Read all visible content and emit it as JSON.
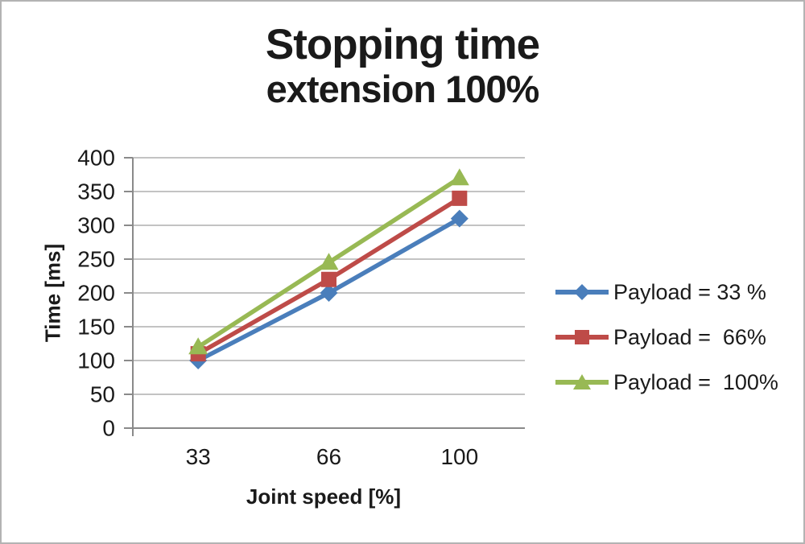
{
  "chart_data": {
    "type": "line",
    "title": "Stopping time",
    "subtitle": "extension 100%",
    "xlabel": "Joint speed [%]",
    "ylabel": "Time [ms]",
    "categories": [
      "33",
      "66",
      "100"
    ],
    "series": [
      {
        "name": "Payload = 33 %",
        "values": [
          100,
          200,
          310
        ],
        "color": "#4A7EBB",
        "marker": "diamond"
      },
      {
        "name": "Payload =  66%",
        "values": [
          110,
          220,
          340
        ],
        "color": "#BE4B48",
        "marker": "square"
      },
      {
        "name": "Payload =  100%",
        "values": [
          120,
          245,
          370
        ],
        "color": "#98B954",
        "marker": "triangle"
      }
    ],
    "ylim": [
      0,
      400
    ],
    "yticks": [
      0,
      50,
      100,
      150,
      200,
      250,
      300,
      350,
      400
    ],
    "grid": "horizontal",
    "legend_position": "right",
    "colors": {
      "gridline": "#C3C3C3",
      "axis": "#8A8A8A",
      "text": "#1A1A1A"
    }
  }
}
